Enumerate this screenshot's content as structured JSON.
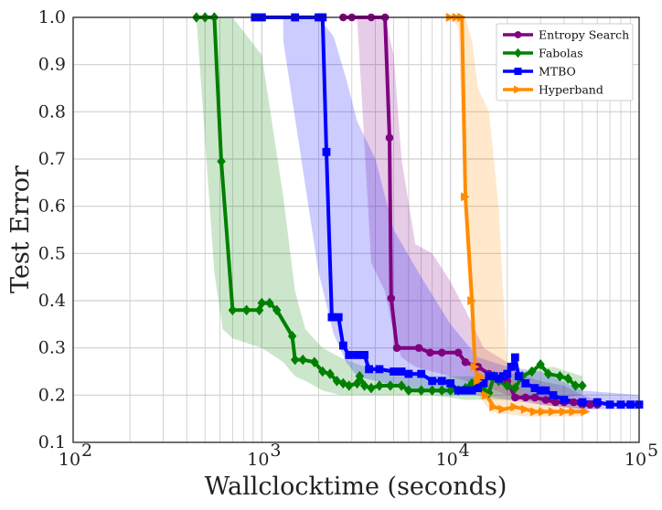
{
  "chart_data": {
    "type": "line",
    "xscale": "log",
    "xlabel": "Wallclocktime (seconds)",
    "ylabel": "Test Error",
    "xlim": [
      100,
      100000
    ],
    "ylim": [
      0.1,
      1.0
    ],
    "grid": true,
    "legend_position": "top-right",
    "x_major_ticks": [
      100,
      1000,
      10000,
      100000
    ],
    "x_tick_labels": [
      {
        "base": "10",
        "exp": "2"
      },
      {
        "base": "10",
        "exp": "3"
      },
      {
        "base": "10",
        "exp": "4"
      },
      {
        "base": "10",
        "exp": "5"
      }
    ],
    "y_ticks": [
      0.1,
      0.2,
      0.3,
      0.4,
      0.5,
      0.6,
      0.7,
      0.8,
      0.9,
      1.0
    ],
    "y_tick_labels": [
      "0.1",
      "0.2",
      "0.3",
      "0.4",
      "0.5",
      "0.6",
      "0.7",
      "0.8",
      "0.9",
      "1.0"
    ],
    "series": [
      {
        "name": "Entropy Search",
        "color": "#800080",
        "marker": "circle",
        "band": {
          "x": [
            3200,
            3800,
            4500,
            5000,
            5500,
            6500,
            8000,
            10000,
            12000,
            15000,
            20000,
            25000,
            30000,
            40000,
            50000,
            60000
          ],
          "upper": [
            1.0,
            1.0,
            1.0,
            0.92,
            0.7,
            0.52,
            0.5,
            0.44,
            0.38,
            0.3,
            0.27,
            0.24,
            0.23,
            0.22,
            0.2,
            0.19
          ],
          "lower": [
            1.0,
            0.48,
            0.42,
            0.33,
            0.28,
            0.26,
            0.25,
            0.24,
            0.23,
            0.22,
            0.2,
            0.19,
            0.18,
            0.175,
            0.17,
            0.17
          ]
        },
        "points": [
          [
            2700,
            1.0
          ],
          [
            3000,
            1.0
          ],
          [
            3800,
            1.0
          ],
          [
            4500,
            1.0
          ],
          [
            4750,
            0.745
          ],
          [
            4850,
            0.405
          ],
          [
            5200,
            0.3
          ],
          [
            6800,
            0.3
          ],
          [
            7800,
            0.29
          ],
          [
            9000,
            0.29
          ],
          [
            11000,
            0.29
          ],
          [
            12000,
            0.27
          ],
          [
            14000,
            0.26
          ],
          [
            16000,
            0.245
          ],
          [
            20000,
            0.23
          ],
          [
            22000,
            0.195
          ],
          [
            25000,
            0.195
          ],
          [
            28000,
            0.195
          ],
          [
            32000,
            0.19
          ],
          [
            36000,
            0.185
          ],
          [
            40000,
            0.185
          ],
          [
            45000,
            0.185
          ],
          [
            50000,
            0.18
          ],
          [
            55000,
            0.18
          ],
          [
            60000,
            0.18
          ]
        ]
      },
      {
        "name": "Fabolas",
        "color": "#008000",
        "marker": "diamond",
        "band": {
          "x": [
            450,
            560,
            620,
            700,
            1000,
            1300,
            1500,
            1700,
            2100,
            2600,
            3500,
            5000,
            8000,
            12000,
            18000,
            25000,
            35000,
            50000
          ],
          "upper": [
            1.0,
            1.0,
            1.0,
            1.0,
            0.92,
            0.62,
            0.42,
            0.34,
            0.3,
            0.28,
            0.26,
            0.25,
            0.24,
            0.24,
            0.24,
            0.25,
            0.26,
            0.24
          ],
          "lower": [
            1.0,
            0.46,
            0.34,
            0.32,
            0.3,
            0.27,
            0.24,
            0.23,
            0.21,
            0.2,
            0.2,
            0.2,
            0.2,
            0.19,
            0.19,
            0.19,
            0.19,
            0.2
          ]
        },
        "points": [
          [
            450,
            1.0
          ],
          [
            500,
            1.0
          ],
          [
            560,
            1.0
          ],
          [
            610,
            0.695
          ],
          [
            700,
            0.38
          ],
          [
            830,
            0.38
          ],
          [
            970,
            0.38
          ],
          [
            1000,
            0.395
          ],
          [
            1100,
            0.395
          ],
          [
            1200,
            0.38
          ],
          [
            1450,
            0.325
          ],
          [
            1500,
            0.275
          ],
          [
            1650,
            0.275
          ],
          [
            1900,
            0.27
          ],
          [
            2100,
            0.25
          ],
          [
            2300,
            0.245
          ],
          [
            2500,
            0.23
          ],
          [
            2700,
            0.225
          ],
          [
            2900,
            0.22
          ],
          [
            3200,
            0.225
          ],
          [
            3300,
            0.24
          ],
          [
            3500,
            0.22
          ],
          [
            3800,
            0.215
          ],
          [
            4200,
            0.22
          ],
          [
            4800,
            0.22
          ],
          [
            5500,
            0.22
          ],
          [
            6000,
            0.21
          ],
          [
            7000,
            0.21
          ],
          [
            8000,
            0.21
          ],
          [
            9000,
            0.21
          ],
          [
            10000,
            0.21
          ],
          [
            11000,
            0.21
          ],
          [
            12000,
            0.215
          ],
          [
            13000,
            0.225
          ],
          [
            14000,
            0.22
          ],
          [
            15000,
            0.21
          ],
          [
            16000,
            0.205
          ],
          [
            17000,
            0.24
          ],
          [
            18000,
            0.23
          ],
          [
            20000,
            0.22
          ],
          [
            22000,
            0.215
          ],
          [
            24000,
            0.24
          ],
          [
            27000,
            0.25
          ],
          [
            30000,
            0.265
          ],
          [
            33000,
            0.245
          ],
          [
            38000,
            0.24
          ],
          [
            42000,
            0.235
          ],
          [
            46000,
            0.22
          ],
          [
            50000,
            0.22
          ]
        ]
      },
      {
        "name": "MTBO",
        "color": "#0000ff",
        "marker": "square",
        "band": {
          "x": [
            1300,
            2000,
            2400,
            2800,
            3200,
            4000,
            5000,
            7000,
            10000,
            14000,
            20000,
            30000,
            50000,
            100000
          ],
          "upper": [
            1.0,
            1.0,
            0.96,
            0.87,
            0.78,
            0.7,
            0.55,
            0.45,
            0.35,
            0.28,
            0.26,
            0.25,
            0.21,
            0.2
          ],
          "lower": [
            0.95,
            0.46,
            0.33,
            0.27,
            0.24,
            0.23,
            0.22,
            0.21,
            0.2,
            0.2,
            0.19,
            0.18,
            0.17,
            0.17
          ]
        },
        "points": [
          [
            920,
            1.0
          ],
          [
            1000,
            1.0
          ],
          [
            1500,
            1.0
          ],
          [
            2000,
            1.0
          ],
          [
            2100,
            1.0
          ],
          [
            2200,
            0.715
          ],
          [
            2350,
            0.365
          ],
          [
            2550,
            0.365
          ],
          [
            2700,
            0.305
          ],
          [
            2900,
            0.285
          ],
          [
            3200,
            0.285
          ],
          [
            3500,
            0.285
          ],
          [
            3700,
            0.255
          ],
          [
            4200,
            0.255
          ],
          [
            5000,
            0.25
          ],
          [
            5500,
            0.25
          ],
          [
            6000,
            0.245
          ],
          [
            7000,
            0.245
          ],
          [
            8000,
            0.23
          ],
          [
            9000,
            0.23
          ],
          [
            10000,
            0.225
          ],
          [
            11000,
            0.21
          ],
          [
            12000,
            0.21
          ],
          [
            13000,
            0.21
          ],
          [
            14000,
            0.215
          ],
          [
            15000,
            0.225
          ],
          [
            16000,
            0.24
          ],
          [
            17000,
            0.24
          ],
          [
            18000,
            0.235
          ],
          [
            19000,
            0.24
          ],
          [
            20000,
            0.245
          ],
          [
            21000,
            0.26
          ],
          [
            22000,
            0.28
          ],
          [
            23000,
            0.24
          ],
          [
            25000,
            0.225
          ],
          [
            28000,
            0.215
          ],
          [
            30000,
            0.21
          ],
          [
            32000,
            0.21
          ],
          [
            35000,
            0.2
          ],
          [
            40000,
            0.19
          ],
          [
            50000,
            0.185
          ],
          [
            60000,
            0.185
          ],
          [
            70000,
            0.18
          ],
          [
            80000,
            0.18
          ],
          [
            90000,
            0.18
          ],
          [
            100000,
            0.18
          ]
        ]
      },
      {
        "name": "Hyperband",
        "color": "#ff8c00",
        "marker": "triangle-right",
        "band": {
          "x": [
            10000,
            11000,
            12000,
            13000,
            14000,
            16000,
            18000,
            20000,
            25000,
            30000,
            40000,
            50000
          ],
          "upper": [
            1.0,
            1.0,
            1.0,
            0.95,
            0.85,
            0.8,
            0.6,
            0.25,
            0.2,
            0.19,
            0.18,
            0.18
          ],
          "lower": [
            1.0,
            0.98,
            0.55,
            0.3,
            0.2,
            0.17,
            0.16,
            0.16,
            0.155,
            0.155,
            0.155,
            0.155
          ]
        },
        "points": [
          [
            10000,
            1.0
          ],
          [
            10800,
            1.0
          ],
          [
            11500,
            1.0
          ],
          [
            12000,
            0.62
          ],
          [
            13000,
            0.4
          ],
          [
            13500,
            0.26
          ],
          [
            14000,
            0.23
          ],
          [
            14500,
            0.24
          ],
          [
            15500,
            0.2
          ],
          [
            17000,
            0.175
          ],
          [
            19000,
            0.17
          ],
          [
            22000,
            0.175
          ],
          [
            25000,
            0.17
          ],
          [
            28000,
            0.165
          ],
          [
            31000,
            0.165
          ],
          [
            35000,
            0.165
          ],
          [
            40000,
            0.165
          ],
          [
            45000,
            0.165
          ],
          [
            52000,
            0.165
          ]
        ]
      }
    ]
  }
}
